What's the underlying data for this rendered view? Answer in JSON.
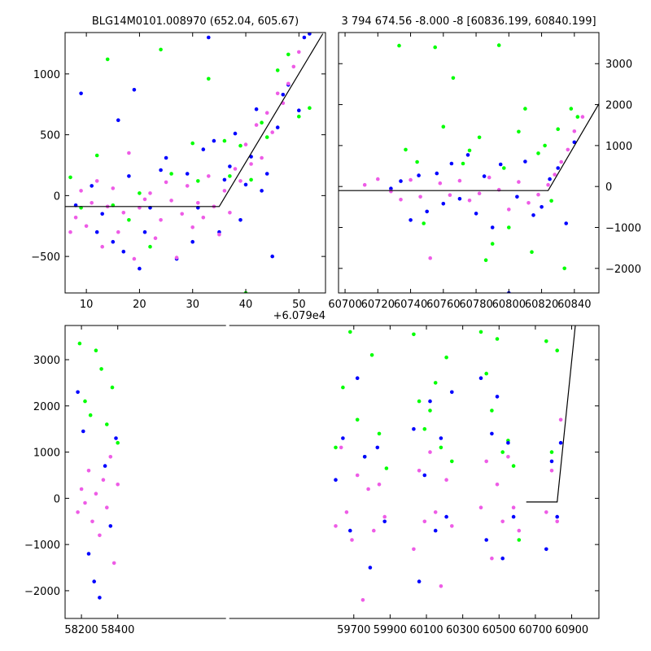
{
  "chart_data": [
    {
      "type": "scatter",
      "title": "BLG14M0101.008970 (652.04, 605.67)",
      "x_offset_label": "+6.079e4",
      "xlim": [
        6,
        55
      ],
      "ylim": [
        -800,
        1340
      ],
      "xticks": [
        10,
        20,
        30,
        40,
        50
      ],
      "yticks": [
        -500,
        0,
        500,
        1000
      ],
      "series": [
        {
          "color": "#00ff00",
          "x": [
            7,
            9,
            12,
            14,
            15,
            18,
            20,
            22,
            24,
            26,
            30,
            31,
            33,
            36,
            37,
            39,
            40,
            41,
            43,
            44,
            46,
            48,
            50,
            52
          ],
          "y": [
            150,
            -100,
            330,
            1120,
            -80,
            -200,
            20,
            -420,
            1200,
            180,
            430,
            120,
            960,
            450,
            160,
            410,
            -800,
            130,
            600,
            480,
            1030,
            1160,
            650,
            720
          ]
        },
        {
          "color": "#0000ff",
          "x": [
            8,
            9,
            11,
            12,
            13,
            15,
            16,
            17,
            18,
            19,
            20,
            21,
            22,
            24,
            25,
            27,
            29,
            30,
            31,
            32,
            33,
            34,
            35,
            36,
            37,
            38,
            39,
            40,
            41,
            42,
            43,
            44,
            45,
            46,
            47,
            48,
            50,
            51,
            52
          ],
          "y": [
            -80,
            840,
            80,
            -300,
            -150,
            -380,
            620,
            -460,
            160,
            870,
            -600,
            -300,
            -100,
            210,
            310,
            -520,
            180,
            -380,
            -100,
            380,
            1300,
            450,
            -300,
            130,
            240,
            510,
            -200,
            90,
            320,
            710,
            40,
            180,
            -500,
            560,
            830,
            910,
            700,
            1300,
            1330
          ]
        },
        {
          "color": "#ee5ce6",
          "x": [
            7,
            8,
            9,
            10,
            11,
            12,
            13,
            14,
            15,
            16,
            17,
            18,
            19,
            20,
            21,
            22,
            23,
            24,
            25,
            26,
            27,
            28,
            29,
            30,
            31,
            32,
            33,
            34,
            35,
            36,
            37,
            38,
            39,
            40,
            41,
            42,
            43,
            44,
            45,
            46,
            47,
            48,
            49,
            50
          ],
          "y": [
            -300,
            -180,
            40,
            -250,
            -60,
            120,
            -420,
            -90,
            60,
            -300,
            -140,
            350,
            -520,
            -100,
            -30,
            20,
            -350,
            -200,
            110,
            -40,
            -510,
            -150,
            80,
            -260,
            -60,
            -180,
            160,
            -90,
            -320,
            40,
            -140,
            220,
            120,
            420,
            260,
            580,
            310,
            680,
            520,
            840,
            760,
            920,
            1060,
            1180
          ]
        }
      ],
      "fit_line": {
        "x": [
          6,
          35,
          54.5
        ],
        "y": [
          -90,
          -90,
          1330
        ]
      }
    },
    {
      "type": "scatter",
      "title": "3 794 674.56 -8.000 -8 [60836.199, 60840.199]",
      "xlim": [
        60696,
        60855
      ],
      "ylim": [
        -2600,
        3760
      ],
      "xticks": [
        60700,
        60720,
        60740,
        60760,
        60780,
        60800,
        60820,
        60840
      ],
      "yticks": [
        -2000,
        -1000,
        0,
        1000,
        2000,
        3000
      ],
      "series": [
        {
          "color": "#00ff00",
          "x": [
            60733,
            60737,
            60744,
            60748,
            60755,
            60760,
            60766,
            60772,
            60776,
            60782,
            60786,
            60790,
            60794,
            60797,
            60800,
            60806,
            60810,
            60814,
            60818,
            60822,
            60826,
            60830,
            60834,
            60838,
            60842
          ],
          "y": [
            3440,
            900,
            600,
            -900,
            3400,
            1460,
            2650,
            560,
            880,
            1200,
            -1800,
            -1400,
            3450,
            450,
            -1000,
            1340,
            1900,
            -1600,
            810,
            1000,
            -350,
            1400,
            -2000,
            1900,
            1700
          ]
        },
        {
          "color": "#0000ff",
          "x": [
            60728,
            60734,
            60740,
            60745,
            60750,
            60756,
            60760,
            60765,
            60770,
            60775,
            60780,
            60785,
            60790,
            60795,
            60800,
            60805,
            60810,
            60815,
            60820,
            60825,
            60830,
            60835,
            60840
          ],
          "y": [
            -50,
            130,
            -820,
            270,
            -610,
            320,
            -420,
            560,
            -300,
            770,
            -660,
            250,
            -1000,
            540,
            -2600,
            -250,
            610,
            -700,
            -500,
            180,
            450,
            -900,
            1080
          ]
        },
        {
          "color": "#ee5ce6",
          "x": [
            60712,
            60720,
            60728,
            60734,
            60740,
            60746,
            60752,
            60758,
            60764,
            60770,
            60776,
            60782,
            60788,
            60794,
            60800,
            60806,
            60812,
            60818,
            60824,
            60828,
            60832,
            60836,
            60840,
            60845
          ],
          "y": [
            40,
            180,
            -120,
            -320,
            160,
            -250,
            -1750,
            80,
            -210,
            140,
            -340,
            -170,
            220,
            -80,
            -560,
            110,
            -400,
            -200,
            40,
            290,
            600,
            900,
            1350,
            1700
          ]
        }
      ],
      "fit_line": {
        "x": [
          60696,
          60824,
          60855
        ],
        "y": [
          -100,
          -100,
          2020
        ]
      }
    },
    {
      "type": "scatter",
      "xlim": [
        58110,
        61050
      ],
      "ylim": [
        -2600,
        3740
      ],
      "xticks": [
        58200,
        58400,
        59700,
        59900,
        60100,
        60300,
        60500,
        60700,
        60900
      ],
      "yticks": [
        -2000,
        -1000,
        0,
        1000,
        2000,
        3000
      ],
      "season_breaks": [
        "58450|59560"
      ],
      "seasons": [
        [
          58160,
          58420
        ],
        [
          59580,
          59890
        ],
        [
          60010,
          60250
        ],
        [
          60390,
          60610
        ],
        [
          60750,
          60840
        ]
      ],
      "series": [
        {
          "color": "#00ff00",
          "x": [
            58190,
            58220,
            58250,
            58280,
            58310,
            58340,
            58370,
            58400,
            59600,
            59640,
            59680,
            59720,
            59760,
            59800,
            59840,
            59880,
            60030,
            60060,
            60090,
            60120,
            60150,
            60180,
            60210,
            60240,
            60400,
            60430,
            60460,
            60490,
            60520,
            60550,
            60580,
            60610,
            60760,
            60790,
            60820
          ],
          "y": [
            3350,
            2100,
            1800,
            3200,
            2800,
            1600,
            2400,
            1200,
            1100,
            2400,
            3600,
            1700,
            900,
            3100,
            1400,
            650,
            3550,
            2100,
            1500,
            1900,
            2500,
            1100,
            3050,
            800,
            3600,
            2700,
            1900,
            3450,
            1000,
            1250,
            700,
            -900,
            3400,
            1000,
            3200
          ]
        },
        {
          "color": "#0000ff",
          "x": [
            58180,
            58210,
            58240,
            58270,
            58300,
            58330,
            58360,
            58390,
            59600,
            59640,
            59680,
            59720,
            59760,
            59790,
            59830,
            59870,
            60030,
            60060,
            60090,
            60120,
            60150,
            60180,
            60210,
            60240,
            60400,
            60430,
            60460,
            60490,
            60520,
            60550,
            60580,
            60760,
            60790,
            60820,
            60840
          ],
          "y": [
            2300,
            1450,
            -1200,
            -1800,
            -2150,
            700,
            -600,
            1300,
            400,
            1300,
            -700,
            2600,
            900,
            -1500,
            1100,
            -500,
            1500,
            -1800,
            500,
            2100,
            -700,
            1300,
            -400,
            2300,
            2600,
            -900,
            1400,
            2200,
            -1300,
            1200,
            -400,
            -1100,
            800,
            -400,
            1200
          ]
        },
        {
          "color": "#ee5ce6",
          "x": [
            58180,
            58200,
            58220,
            58240,
            58260,
            58280,
            58300,
            58320,
            58340,
            58360,
            58380,
            58400,
            59600,
            59630,
            59660,
            59690,
            59720,
            59750,
            59780,
            59810,
            59840,
            59870,
            60030,
            60060,
            60090,
            60120,
            60150,
            60180,
            60210,
            60240,
            60400,
            60430,
            60460,
            60490,
            60520,
            60550,
            60580,
            60610,
            60760,
            60790,
            60820,
            60840
          ],
          "y": [
            -300,
            200,
            -100,
            600,
            -500,
            100,
            -800,
            400,
            -200,
            900,
            -1400,
            300,
            -600,
            1100,
            -300,
            -900,
            500,
            -2200,
            200,
            -700,
            300,
            -400,
            -1100,
            600,
            -500,
            1000,
            -300,
            -1900,
            400,
            -600,
            -200,
            800,
            -1300,
            300,
            -500,
            900,
            -200,
            -700,
            -300,
            600,
            -500,
            1700
          ]
        }
      ],
      "fit_line": {
        "x": [
          60650,
          60820,
          60920
        ],
        "y": [
          -80,
          -80,
          3740
        ]
      }
    }
  ]
}
